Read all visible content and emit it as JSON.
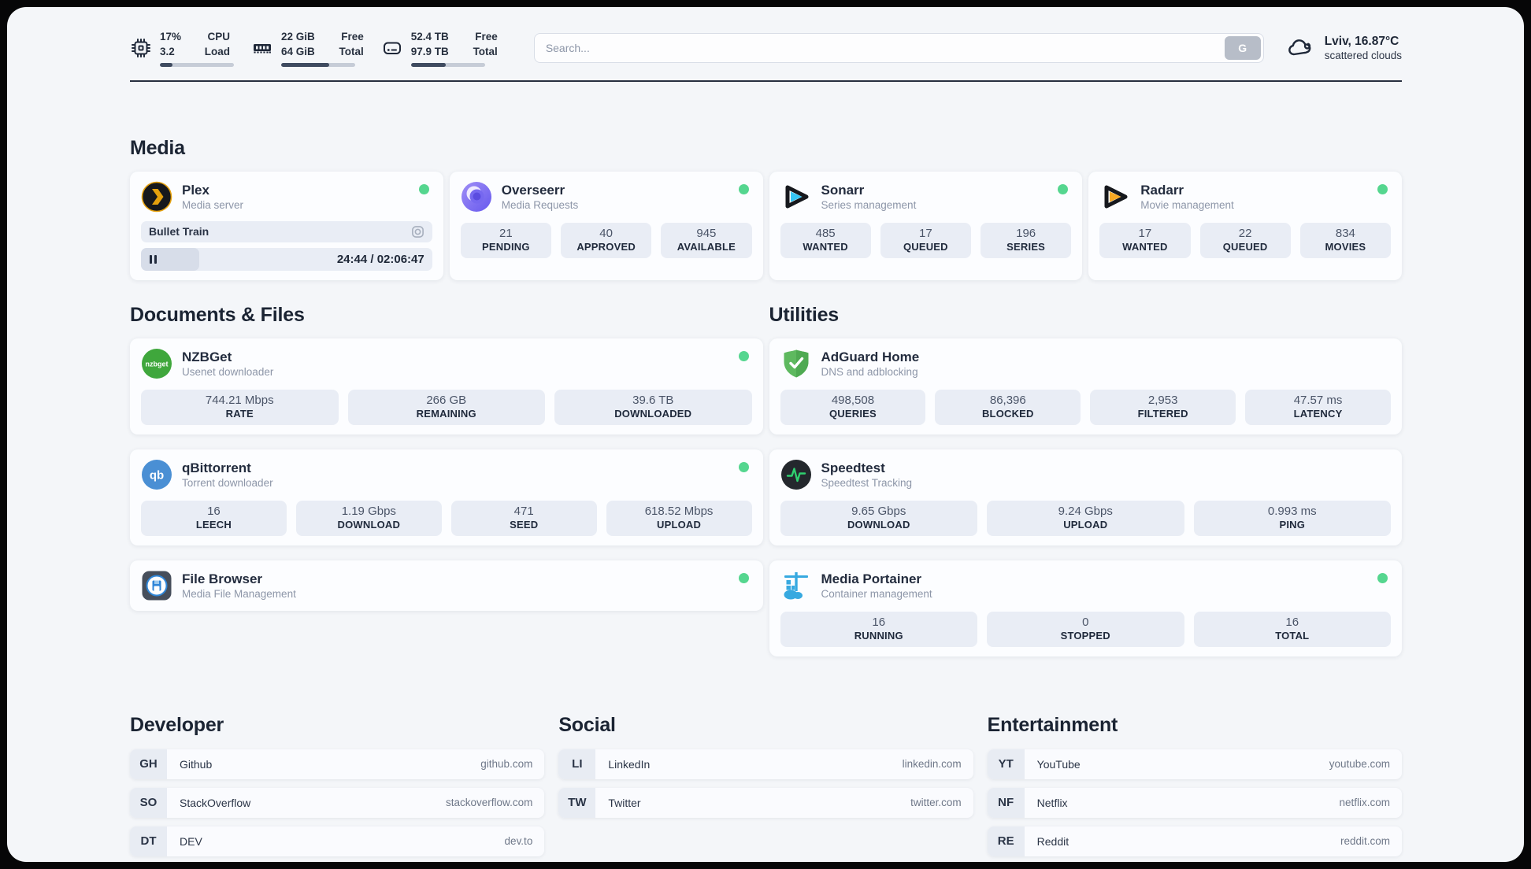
{
  "header": {
    "metrics": [
      {
        "id": "cpu",
        "values": [
          "17%",
          "3.2"
        ],
        "labels": [
          "CPU",
          "Load"
        ],
        "progress_pct": 17
      },
      {
        "id": "ram",
        "values": [
          "22 GiB",
          "64 GiB"
        ],
        "labels": [
          "Free",
          "Total"
        ],
        "progress_pct": 65
      },
      {
        "id": "disk",
        "values": [
          "52.4 TB",
          "97.9 TB"
        ],
        "labels": [
          "Free",
          "Total"
        ],
        "progress_pct": 47
      }
    ],
    "search": {
      "placeholder": "Search...",
      "button_label": "G"
    },
    "weather": {
      "location_temp": "Lviv, 16.87°C",
      "condition": "scattered clouds"
    }
  },
  "sections": {
    "media": {
      "heading": "Media",
      "plex": {
        "title": "Plex",
        "subtitle": "Media server",
        "online": true,
        "now_playing": {
          "title": "Bullet Train",
          "time_display": "24:44 / 02:06:47",
          "progress_pct": 20
        }
      },
      "overseerr": {
        "title": "Overseerr",
        "subtitle": "Media Requests",
        "online": true,
        "stats": [
          {
            "value": "21",
            "label": "PENDING"
          },
          {
            "value": "40",
            "label": "APPROVED"
          },
          {
            "value": "945",
            "label": "AVAILABLE"
          }
        ]
      },
      "sonarr": {
        "title": "Sonarr",
        "subtitle": "Series management",
        "online": true,
        "stats": [
          {
            "value": "485",
            "label": "WANTED"
          },
          {
            "value": "17",
            "label": "QUEUED"
          },
          {
            "value": "196",
            "label": "SERIES"
          }
        ]
      },
      "radarr": {
        "title": "Radarr",
        "subtitle": "Movie management",
        "online": true,
        "stats": [
          {
            "value": "17",
            "label": "WANTED"
          },
          {
            "value": "22",
            "label": "QUEUED"
          },
          {
            "value": "834",
            "label": "MOVIES"
          }
        ]
      }
    },
    "documents": {
      "heading": "Documents & Files",
      "nzbget": {
        "title": "NZBGet",
        "subtitle": "Usenet downloader",
        "online": true,
        "icon_text": "nzbget",
        "stats": [
          {
            "value": "744.21 Mbps",
            "label": "RATE"
          },
          {
            "value": "266 GB",
            "label": "REMAINING"
          },
          {
            "value": "39.6 TB",
            "label": "DOWNLOADED"
          }
        ]
      },
      "qbittorrent": {
        "title": "qBittorrent",
        "subtitle": "Torrent downloader",
        "online": true,
        "icon_text": "qb",
        "stats": [
          {
            "value": "16",
            "label": "LEECH"
          },
          {
            "value": "1.19 Gbps",
            "label": "DOWNLOAD"
          },
          {
            "value": "471",
            "label": "SEED"
          },
          {
            "value": "618.52 Mbps",
            "label": "UPLOAD"
          }
        ]
      },
      "filebrowser": {
        "title": "File Browser",
        "subtitle": "Media File Management",
        "online": true
      }
    },
    "utilities": {
      "heading": "Utilities",
      "adguard": {
        "title": "AdGuard Home",
        "subtitle": "DNS and adblocking",
        "stats": [
          {
            "value": "498,508",
            "label": "QUERIES"
          },
          {
            "value": "86,396",
            "label": "BLOCKED"
          },
          {
            "value": "2,953",
            "label": "FILTERED"
          },
          {
            "value": "47.57 ms",
            "label": "LATENCY"
          }
        ]
      },
      "speedtest": {
        "title": "Speedtest",
        "subtitle": "Speedtest Tracking",
        "stats": [
          {
            "value": "9.65 Gbps",
            "label": "DOWNLOAD"
          },
          {
            "value": "9.24 Gbps",
            "label": "UPLOAD"
          },
          {
            "value": "0.993 ms",
            "label": "PING"
          }
        ]
      },
      "portainer": {
        "title": "Media Portainer",
        "subtitle": "Container management",
        "online": true,
        "stats": [
          {
            "value": "16",
            "label": "RUNNING"
          },
          {
            "value": "0",
            "label": "STOPPED"
          },
          {
            "value": "16",
            "label": "TOTAL"
          }
        ]
      }
    },
    "links": [
      {
        "heading": "Developer",
        "items": [
          {
            "abbr": "GH",
            "name": "Github",
            "url": "github.com"
          },
          {
            "abbr": "SO",
            "name": "StackOverflow",
            "url": "stackoverflow.com"
          },
          {
            "abbr": "DT",
            "name": "DEV",
            "url": "dev.to"
          }
        ]
      },
      {
        "heading": "Social",
        "items": [
          {
            "abbr": "LI",
            "name": "LinkedIn",
            "url": "linkedin.com"
          },
          {
            "abbr": "TW",
            "name": "Twitter",
            "url": "twitter.com"
          }
        ]
      },
      {
        "heading": "Entertainment",
        "items": [
          {
            "abbr": "YT",
            "name": "YouTube",
            "url": "youtube.com"
          },
          {
            "abbr": "NF",
            "name": "Netflix",
            "url": "netflix.com"
          },
          {
            "abbr": "RE",
            "name": "Reddit",
            "url": "reddit.com"
          }
        ]
      }
    ]
  },
  "colors": {
    "status_green": "#55d68f",
    "bar_fill": "#3f4b60",
    "plex_amber": "#e5a00d",
    "sonarr_blue": "#35c5f4",
    "radarr_amber": "#f7a823",
    "adguard_green": "#5eb95f",
    "qbittorrent_blue": "#4a8fd4",
    "nzbget_green": "#3fa73c",
    "portainer_blue": "#37a9e0",
    "speedtest_green": "#2fd06f"
  }
}
